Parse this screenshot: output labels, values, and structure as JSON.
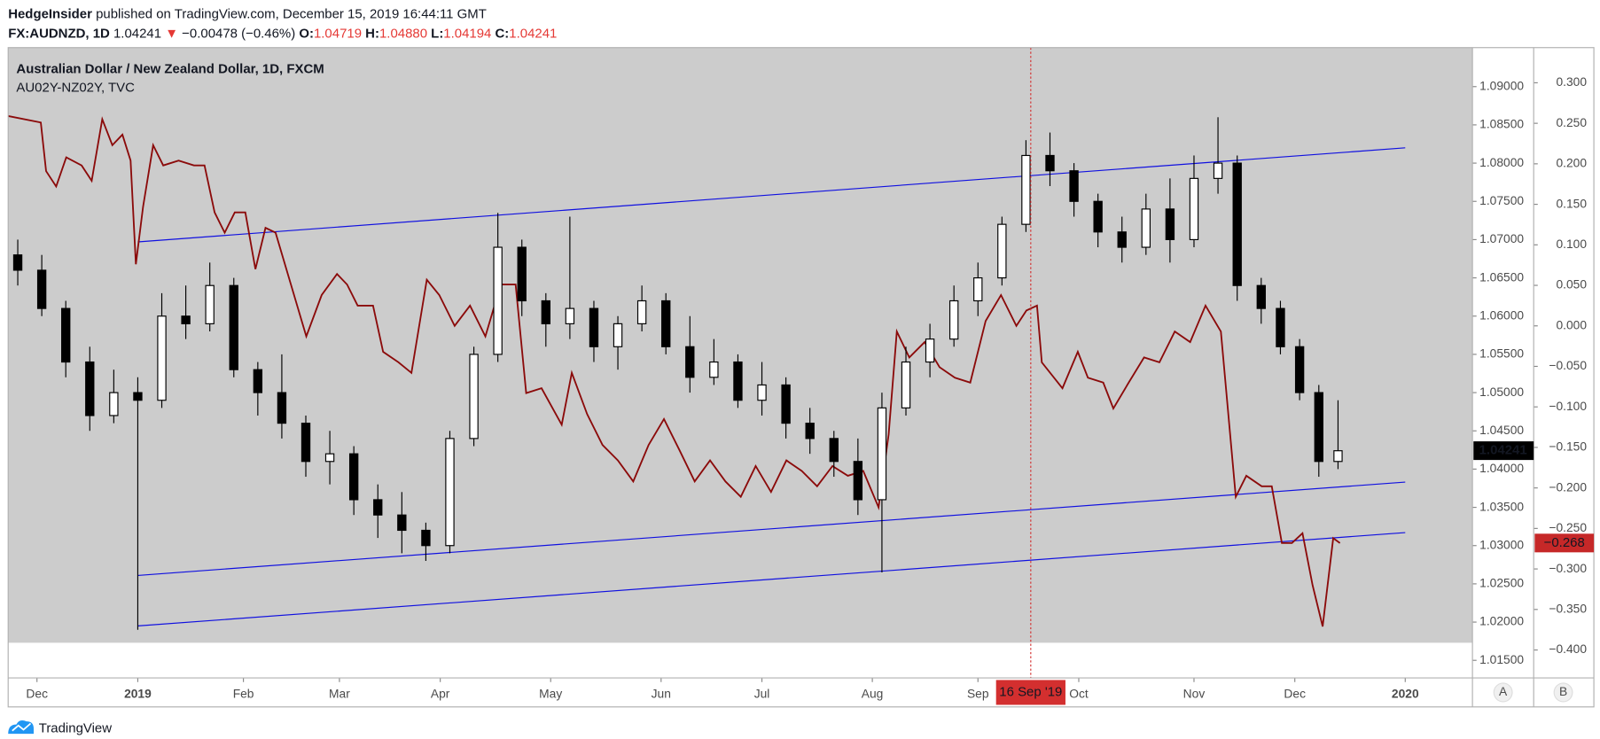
{
  "header": {
    "author": "HedgeInsider",
    "published": "published on TradingView.com, December 15, 2019 16:44:11 GMT"
  },
  "quote": {
    "symbol": "FX:AUDNZD, 1D",
    "last": "1.04241",
    "arrow": "▼",
    "change": "−0.00478 (−0.46%)",
    "open_label": "O:",
    "open": "1.04719",
    "high_label": "H:",
    "high": "1.04880",
    "low_label": "L:",
    "low": "1.04194",
    "close_label": "C:",
    "close": "1.04241"
  },
  "chart_data": {
    "type": "candlestick",
    "title": "Australian Dollar / New Zealand Dollar, 1D, FXCM",
    "background": "#cccccc",
    "up_color": "#ffffff",
    "down_color": "#000000",
    "x": [
      2,
      7,
      12,
      17,
      22,
      27,
      32,
      37,
      42,
      47,
      52,
      57,
      62,
      67,
      72,
      77,
      82,
      87,
      92,
      97,
      102,
      107,
      112,
      117,
      122,
      127,
      132,
      137,
      142,
      147,
      152,
      157,
      162,
      167,
      172,
      177,
      182,
      187,
      192,
      197,
      202,
      207,
      212,
      217,
      222,
      227,
      232,
      237,
      242,
      247,
      252,
      256,
      261,
      265,
      269,
      273,
      277
    ],
    "open": [
      1.068,
      1.066,
      1.061,
      1.054,
      1.047,
      1.05,
      1.049,
      1.06,
      1.059,
      1.064,
      1.053,
      1.05,
      1.046,
      1.041,
      1.042,
      1.036,
      1.034,
      1.032,
      1.03,
      1.044,
      1.055,
      1.069,
      1.062,
      1.059,
      1.061,
      1.056,
      1.059,
      1.062,
      1.056,
      1.052,
      1.054,
      1.049,
      1.051,
      1.046,
      1.044,
      1.041,
      1.036,
      1.048,
      1.054,
      1.057,
      1.062,
      1.065,
      1.072,
      1.081,
      1.079,
      1.075,
      1.071,
      1.069,
      1.074,
      1.07,
      1.078,
      1.08,
      1.064,
      1.061,
      1.056,
      1.05,
      1.041
    ],
    "high": [
      1.07,
      1.068,
      1.062,
      1.056,
      1.053,
      1.052,
      1.063,
      1.064,
      1.067,
      1.065,
      1.054,
      1.055,
      1.047,
      1.045,
      1.043,
      1.038,
      1.037,
      1.033,
      1.045,
      1.056,
      1.0735,
      1.07,
      1.063,
      1.073,
      1.062,
      1.06,
      1.064,
      1.063,
      1.06,
      1.057,
      1.055,
      1.054,
      1.052,
      1.048,
      1.045,
      1.044,
      1.05,
      1.056,
      1.059,
      1.064,
      1.067,
      1.073,
      1.083,
      1.084,
      1.08,
      1.076,
      1.073,
      1.076,
      1.078,
      1.081,
      1.086,
      1.081,
      1.065,
      1.062,
      1.057,
      1.051,
      1.049
    ],
    "low": [
      1.064,
      1.06,
      1.052,
      1.045,
      1.046,
      1.019,
      1.048,
      1.057,
      1.058,
      1.052,
      1.047,
      1.044,
      1.039,
      1.038,
      1.034,
      1.031,
      1.029,
      1.028,
      1.029,
      1.043,
      1.054,
      1.06,
      1.056,
      1.057,
      1.054,
      1.053,
      1.058,
      1.055,
      1.05,
      1.051,
      1.048,
      1.047,
      1.044,
      1.042,
      1.039,
      1.034,
      1.0265,
      1.047,
      1.052,
      1.056,
      1.06,
      1.064,
      1.071,
      1.077,
      1.073,
      1.069,
      1.067,
      1.068,
      1.067,
      1.069,
      1.076,
      1.062,
      1.059,
      1.055,
      1.049,
      1.039,
      1.04
    ],
    "close": [
      1.066,
      1.061,
      1.054,
      1.047,
      1.05,
      1.049,
      1.06,
      1.059,
      1.064,
      1.053,
      1.05,
      1.046,
      1.041,
      1.042,
      1.036,
      1.034,
      1.032,
      1.03,
      1.044,
      1.055,
      1.069,
      1.062,
      1.059,
      1.061,
      1.056,
      1.059,
      1.062,
      1.056,
      1.052,
      1.054,
      1.049,
      1.051,
      1.046,
      1.044,
      1.041,
      1.036,
      1.048,
      1.054,
      1.057,
      1.062,
      1.065,
      1.072,
      1.081,
      1.079,
      1.075,
      1.071,
      1.069,
      1.074,
      1.07,
      1.078,
      1.08,
      1.064,
      1.061,
      1.056,
      1.05,
      1.041,
      1.0424
    ],
    "overlay": {
      "name": "AU02Y-NZ02Y, TVC",
      "color": "#8b0a0a",
      "axis": "y2",
      "x": [
        0,
        6.8,
        7.9,
        10,
        12.1,
        15.3,
        17.4,
        19.6,
        21.7,
        23.8,
        25.5,
        26.6,
        28.1,
        30.2,
        32.3,
        35.5,
        38.7,
        40.9,
        43,
        45.1,
        47.2,
        49.4,
        51.5,
        53.6,
        55.7,
        58.9,
        62.1,
        65.3,
        68.5,
        70.6,
        72.8,
        76,
        78.1,
        81.3,
        84,
        87.2,
        89.8,
        93,
        96.2,
        99.4,
        102.6,
        105.7,
        107.9,
        111.1,
        115.3,
        117.4,
        120.6,
        123.8,
        127,
        130.2,
        133.4,
        136.6,
        139.8,
        143,
        146.2,
        149.4,
        152.6,
        155.7,
        158.9,
        162.1,
        165.3,
        168.5,
        171.7,
        174.9,
        178.1,
        181.3,
        183.4,
        185.1,
        187.7,
        190.9,
        194,
        197.2,
        200.4,
        203.6,
        206.8,
        210,
        212.1,
        214.3,
        215.3,
        219.6,
        222.8,
        224.9,
        228.1,
        230.2,
        233.4,
        236.6,
        239.8,
        243,
        246.2,
        249.4,
        252.6,
        255.7,
        257.9,
        261.1,
        263.2,
        265.3,
        267.4,
        269.6,
        271.7,
        273.8,
        276,
        277.4
      ],
      "values": [
        0.259,
        0.251,
        0.191,
        0.172,
        0.208,
        0.198,
        0.179,
        0.255,
        0.223,
        0.236,
        0.204,
        0.076,
        0.147,
        0.223,
        0.198,
        0.204,
        0.198,
        0.198,
        0.14,
        0.115,
        0.14,
        0.14,
        0.07,
        0.121,
        0.115,
        0.051,
        -0.013,
        0.038,
        0.064,
        0.051,
        0.025,
        0.025,
        -0.032,
        -0.045,
        -0.058,
        0.057,
        0.038,
        0.0,
        0.025,
        -0.013,
        0.051,
        0.051,
        -0.083,
        -0.077,
        -0.122,
        -0.058,
        -0.109,
        -0.147,
        -0.166,
        -0.192,
        -0.147,
        -0.115,
        -0.153,
        -0.192,
        -0.166,
        -0.192,
        -0.211,
        -0.173,
        -0.205,
        -0.166,
        -0.179,
        -0.198,
        -0.173,
        -0.185,
        -0.179,
        -0.224,
        -0.134,
        -0.007,
        -0.039,
        -0.02,
        -0.051,
        -0.064,
        -0.07,
        0.006,
        0.038,
        0.0,
        0.019,
        0.025,
        -0.045,
        -0.077,
        -0.032,
        -0.064,
        -0.07,
        -0.102,
        -0.07,
        -0.039,
        -0.045,
        -0.007,
        -0.02,
        0.025,
        -0.007,
        -0.211,
        -0.185,
        -0.198,
        -0.198,
        -0.268,
        -0.268,
        -0.256,
        -0.32,
        -0.371,
        -0.262,
        -0.268
      ]
    },
    "trendlines": [
      {
        "x": [
          27,
          291
        ],
        "values": [
          1.0697,
          1.082
        ],
        "color": "#1010e0"
      },
      {
        "x": [
          27,
          291
        ],
        "values": [
          1.0261,
          1.0383
        ],
        "color": "#1010e0"
      },
      {
        "x": [
          27,
          291
        ],
        "values": [
          1.0195,
          1.0317
        ],
        "color": "#1010e0"
      }
    ],
    "crosshair": {
      "x": 213,
      "label": "16 Sep '19",
      "color": "#d32f2f"
    },
    "xlim": [
      0,
      305
    ],
    "xticks": [
      {
        "value": 6,
        "label": "Dec"
      },
      {
        "value": 27,
        "label": "2019"
      },
      {
        "value": 49,
        "label": "Feb"
      },
      {
        "value": 69,
        "label": "Mar"
      },
      {
        "value": 90,
        "label": "Apr"
      },
      {
        "value": 113,
        "label": "May"
      },
      {
        "value": 136,
        "label": "Jun"
      },
      {
        "value": 157,
        "label": "Jul"
      },
      {
        "value": 180,
        "label": "Aug"
      },
      {
        "value": 202,
        "label": "Sep"
      },
      {
        "value": 223,
        "label": "Oct"
      },
      {
        "value": 247,
        "label": "Nov"
      },
      {
        "value": 268,
        "label": "Dec"
      },
      {
        "value": 291,
        "label": "2020"
      }
    ],
    "ylim": [
      1.0127,
      1.0951
    ],
    "yticks": [
      {
        "value": 1.015,
        "label": "1.01500"
      },
      {
        "value": 1.02,
        "label": "1.02000"
      },
      {
        "value": 1.025,
        "label": "1.02500"
      },
      {
        "value": 1.03,
        "label": "1.03000"
      },
      {
        "value": 1.035,
        "label": "1.03500"
      },
      {
        "value": 1.04,
        "label": "1.04000"
      },
      {
        "value": 1.045,
        "label": "1.04500"
      },
      {
        "value": 1.05,
        "label": "1.05000"
      },
      {
        "value": 1.055,
        "label": "1.05500"
      },
      {
        "value": 1.06,
        "label": "1.06000"
      },
      {
        "value": 1.065,
        "label": "1.06500"
      },
      {
        "value": 1.07,
        "label": "1.07000"
      },
      {
        "value": 1.075,
        "label": "1.07500"
      },
      {
        "value": 1.08,
        "label": "1.08000"
      },
      {
        "value": 1.085,
        "label": "1.08500"
      },
      {
        "value": 1.09,
        "label": "1.09000"
      }
    ],
    "y2lim": [
      -0.4345,
      0.3434
    ],
    "y2ticks": [
      {
        "value": -0.4,
        "label": "−0.400"
      },
      {
        "value": -0.35,
        "label": "−0.350"
      },
      {
        "value": -0.3,
        "label": "−0.300"
      },
      {
        "value": -0.25,
        "label": "−0.250"
      },
      {
        "value": -0.2,
        "label": "−0.200"
      },
      {
        "value": -0.15,
        "label": "−0.150"
      },
      {
        "value": -0.1,
        "label": "−0.100"
      },
      {
        "value": -0.05,
        "label": "−0.050"
      },
      {
        "value": 0,
        "label": "0.000"
      },
      {
        "value": 0.05,
        "label": "0.050"
      },
      {
        "value": 0.1,
        "label": "0.100"
      },
      {
        "value": 0.15,
        "label": "0.150"
      },
      {
        "value": 0.2,
        "label": "0.200"
      },
      {
        "value": 0.25,
        "label": "0.250"
      },
      {
        "value": 0.3,
        "label": "0.300"
      }
    ],
    "last_price": {
      "value": 1.04241,
      "label": "1.04241",
      "color": "#000000"
    },
    "overlay_last": {
      "value": -0.268,
      "label": "−0.268",
      "color": "#c62828"
    }
  },
  "scale_buttons": [
    "A",
    "B"
  ],
  "footer": {
    "brand": "TradingView"
  }
}
